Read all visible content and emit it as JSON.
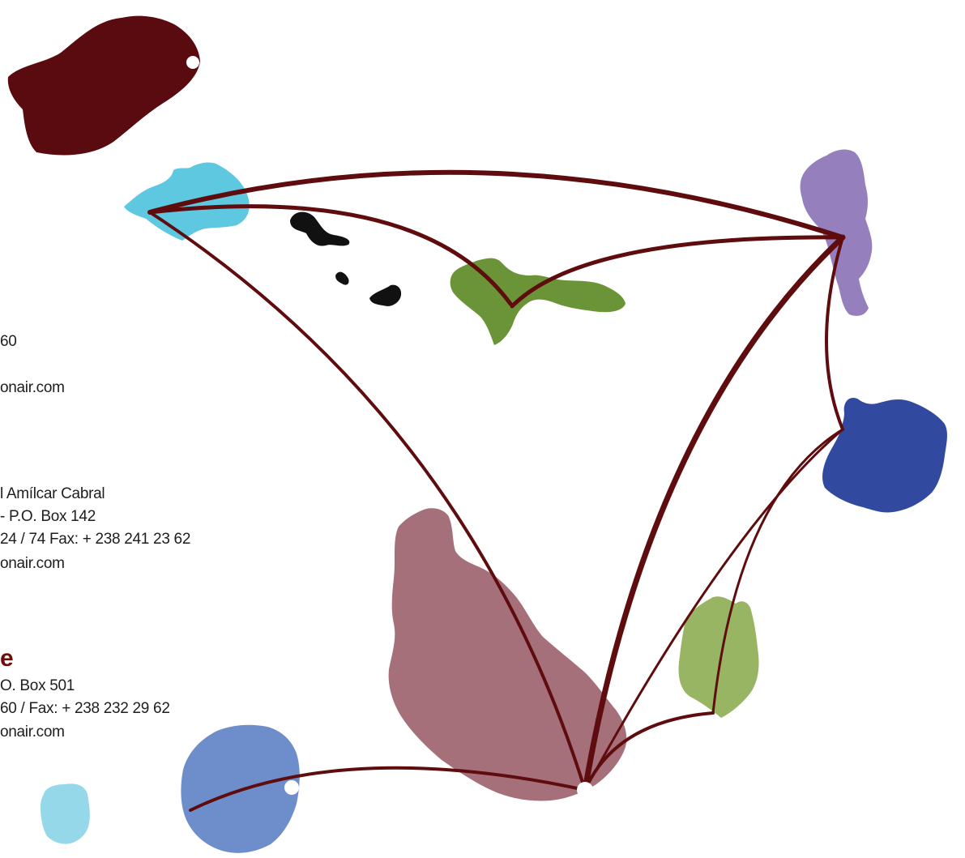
{
  "colors": {
    "route": "#5e0c0e",
    "santo_antao": "#5a0b0f",
    "sao_vicente": "#5ec8e0",
    "santa_luzia": "#111111",
    "sao_nicolau": "#6b9438",
    "sal": "#9580bd",
    "boa_vista": "#314a9f",
    "maio": "#97b562",
    "santiago": "#a6707b",
    "fogo": "#6e8ecb",
    "brava": "#94d8ea",
    "hub_marker": "#ffffff"
  },
  "contacts": {
    "block1_line1": "60",
    "block1_line2": "onair.com",
    "block2_line1": "l Amílcar Cabral",
    "block2_line2": "- P.O. Box 142",
    "block2_line3": "24 / 74 Fax: + 238 241 23 62",
    "block2_line4": "onair.com",
    "block3_heading": "e",
    "block3_line1": "O. Box 501",
    "block3_line2": "60 / Fax: + 238 232 29 62",
    "block3_line3": "onair.com"
  }
}
